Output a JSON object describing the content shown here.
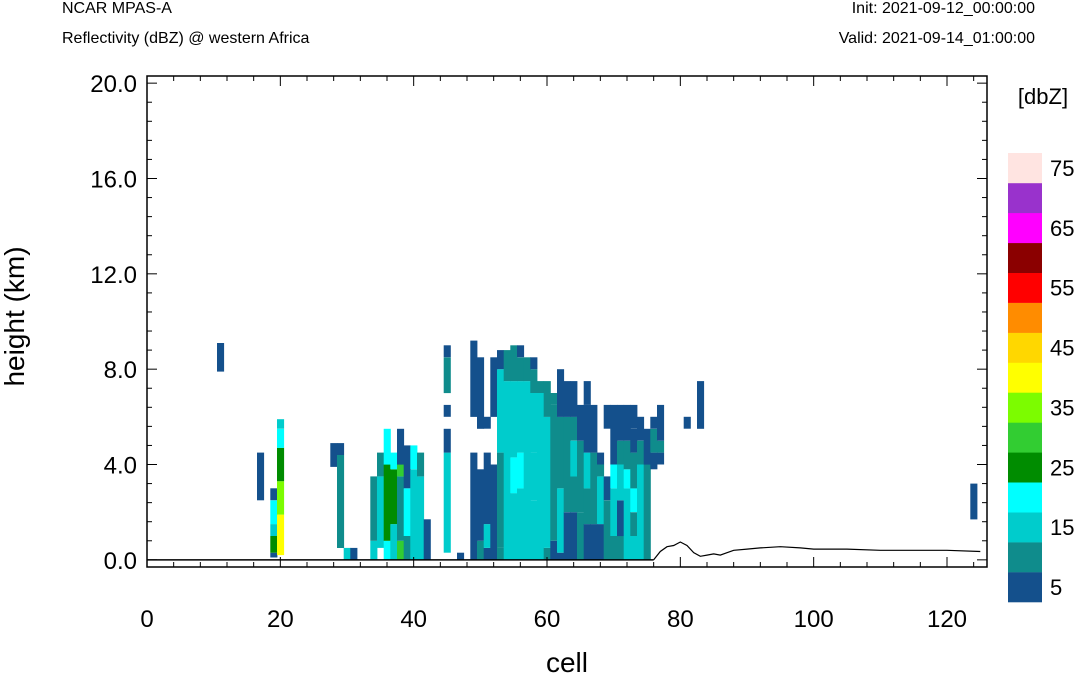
{
  "header": {
    "model": "NCAR MPAS-A",
    "field": "Reflectivity (dBZ) @ western Africa",
    "init": "Init: 2021-09-12_00:00:00",
    "valid": "Valid: 2021-09-14_01:00:00"
  },
  "chart_data": {
    "type": "heatmap",
    "xlabel": "cell",
    "ylabel": "height (km)",
    "xlim": [
      0,
      126
    ],
    "ylim": [
      -0.3,
      20.3
    ],
    "xticks": [
      0,
      20,
      40,
      60,
      80,
      100,
      120
    ],
    "xtick_labels": [
      "0",
      "20",
      "40",
      "60",
      "80",
      "100",
      "120"
    ],
    "yticks": [
      0,
      4,
      8,
      12,
      16,
      20
    ],
    "ytick_labels": [
      "0.0",
      "4.0",
      "8.0",
      "12.0",
      "16.0",
      "20.0"
    ],
    "colorbar": {
      "unit_label": "[dbZ]",
      "bounds": [
        0,
        10,
        15,
        20,
        25,
        30,
        35,
        40,
        45,
        50,
        55,
        60,
        65,
        70,
        80
      ],
      "colors": [
        "#14508c",
        "#0f8c8c",
        "#00cccc",
        "#00ffff",
        "#008c00",
        "#32cd32",
        "#7cfc00",
        "#ffff00",
        "#ffd700",
        "#ff8c00",
        "#ff0000",
        "#8b0000",
        "#ff00ff",
        "#9932cc",
        "#ffe4e1"
      ],
      "tick_labels": [
        "5",
        "15",
        "25",
        "35",
        "45",
        "55",
        "65",
        "75"
      ]
    },
    "terrain_km": [
      [
        76,
        0.0
      ],
      [
        77,
        0.35
      ],
      [
        78,
        0.55
      ],
      [
        79,
        0.6
      ],
      [
        80,
        0.75
      ],
      [
        81,
        0.6
      ],
      [
        82,
        0.3
      ],
      [
        83,
        0.15
      ],
      [
        84,
        0.2
      ],
      [
        85,
        0.25
      ],
      [
        86,
        0.2
      ],
      [
        87,
        0.3
      ],
      [
        88,
        0.4
      ],
      [
        90,
        0.45
      ],
      [
        92,
        0.5
      ],
      [
        95,
        0.55
      ],
      [
        98,
        0.5
      ],
      [
        100,
        0.45
      ],
      [
        105,
        0.45
      ],
      [
        110,
        0.4
      ],
      [
        115,
        0.4
      ],
      [
        120,
        0.4
      ],
      [
        125,
        0.35
      ]
    ],
    "columns": [
      {
        "x": 11,
        "cells": [
          [
            7.9,
            9.1,
            5
          ]
        ]
      },
      {
        "x": 17,
        "cells": [
          [
            2.5,
            4.5,
            5
          ]
        ]
      },
      {
        "x": 19,
        "cells": [
          [
            0.1,
            0.3,
            5
          ],
          [
            0.3,
            1.0,
            25
          ],
          [
            1.0,
            1.5,
            15
          ],
          [
            1.5,
            2.5,
            20
          ],
          [
            2.5,
            3.0,
            5
          ]
        ]
      },
      {
        "x": 20,
        "cells": [
          [
            0.2,
            1.9,
            40
          ],
          [
            1.9,
            3.3,
            35
          ],
          [
            3.3,
            4.7,
            25
          ],
          [
            4.7,
            5.5,
            20
          ],
          [
            5.5,
            5.9,
            15
          ]
        ]
      },
      {
        "x": 28,
        "cells": [
          [
            3.9,
            4.9,
            5
          ]
        ]
      },
      {
        "x": 29,
        "cells": [
          [
            4.4,
            4.9,
            5
          ],
          [
            0.5,
            4.4,
            10
          ]
        ]
      },
      {
        "x": 30,
        "cells": [
          [
            0.0,
            0.5,
            15
          ]
        ]
      },
      {
        "x": 31,
        "cells": [
          [
            0.0,
            0.5,
            5
          ]
        ]
      },
      {
        "x": 34,
        "cells": [
          [
            0.0,
            0.8,
            15
          ],
          [
            0.8,
            3.5,
            10
          ]
        ]
      },
      {
        "x": 35,
        "cells": [
          [
            0.5,
            3.5,
            15
          ],
          [
            3.5,
            4.5,
            10
          ]
        ]
      },
      {
        "x": 36,
        "cells": [
          [
            0.0,
            0.8,
            20
          ],
          [
            0.8,
            4.0,
            25
          ],
          [
            4.0,
            5.5,
            20
          ]
        ]
      },
      {
        "x": 37,
        "cells": [
          [
            0.0,
            1.5,
            15
          ],
          [
            1.5,
            3.8,
            25
          ],
          [
            3.8,
            4.5,
            20
          ]
        ]
      },
      {
        "x": 38,
        "cells": [
          [
            0.0,
            0.8,
            30
          ],
          [
            0.8,
            3.5,
            10
          ],
          [
            3.5,
            4.0,
            30
          ],
          [
            4.0,
            5.5,
            5
          ]
        ]
      },
      {
        "x": 39,
        "cells": [
          [
            0.0,
            1.0,
            10
          ],
          [
            1.0,
            3.0,
            20
          ],
          [
            3.0,
            4.8,
            5
          ]
        ]
      },
      {
        "x": 40,
        "cells": [
          [
            0.0,
            3.8,
            15
          ],
          [
            3.8,
            4.8,
            20
          ]
        ]
      },
      {
        "x": 41,
        "cells": [
          [
            0.0,
            3.5,
            15
          ],
          [
            3.5,
            4.5,
            10
          ]
        ]
      },
      {
        "x": 42,
        "cells": [
          [
            0.0,
            1.7,
            5
          ]
        ]
      },
      {
        "x": 45,
        "cells": [
          [
            0.3,
            4.5,
            15
          ],
          [
            4.5,
            5.5,
            5
          ],
          [
            6.0,
            6.5,
            5
          ],
          [
            7.0,
            8.5,
            10
          ],
          [
            8.5,
            9.0,
            5
          ]
        ]
      },
      {
        "x": 47,
        "cells": [
          [
            0.0,
            0.3,
            5
          ]
        ]
      },
      {
        "x": 49,
        "cells": [
          [
            0.0,
            4.5,
            5
          ],
          [
            6.0,
            9.2,
            5
          ]
        ]
      },
      {
        "x": 50,
        "cells": [
          [
            0.0,
            0.8,
            10
          ],
          [
            0.8,
            3.8,
            5
          ],
          [
            5.5,
            8.5,
            5
          ]
        ]
      },
      {
        "x": 51,
        "cells": [
          [
            0.0,
            0.5,
            5
          ],
          [
            0.5,
            1.5,
            15
          ],
          [
            1.5,
            4.5,
            5
          ],
          [
            5.5,
            6.0,
            5
          ]
        ]
      },
      {
        "x": 52,
        "cells": [
          [
            0.0,
            4.0,
            5
          ],
          [
            6.0,
            8.5,
            5
          ]
        ]
      },
      {
        "x": 53,
        "cells": [
          [
            0.0,
            0.5,
            10
          ],
          [
            0.5,
            4.5,
            10
          ],
          [
            4.5,
            8.0,
            15
          ],
          [
            8.0,
            8.8,
            5
          ]
        ]
      },
      {
        "x": 54,
        "cells": [
          [
            0.0,
            7.5,
            15
          ],
          [
            7.5,
            8.8,
            10
          ]
        ]
      },
      {
        "x": 55,
        "cells": [
          [
            0.0,
            2.8,
            15
          ],
          [
            2.8,
            4.3,
            20
          ],
          [
            4.3,
            7.5,
            15
          ],
          [
            7.5,
            9.0,
            10
          ]
        ]
      },
      {
        "x": 56,
        "cells": [
          [
            0.0,
            3.0,
            15
          ],
          [
            3.0,
            4.5,
            20
          ],
          [
            4.5,
            7.5,
            15
          ],
          [
            7.5,
            8.5,
            10
          ],
          [
            8.5,
            9.0,
            5
          ]
        ]
      },
      {
        "x": 57,
        "cells": [
          [
            0.0,
            7.5,
            15
          ],
          [
            7.5,
            8.5,
            10
          ]
        ]
      },
      {
        "x": 58,
        "cells": [
          [
            0.0,
            2.5,
            15
          ],
          [
            2.5,
            4.5,
            15
          ],
          [
            4.5,
            7.0,
            15
          ],
          [
            7.0,
            8.0,
            10
          ],
          [
            8.0,
            8.5,
            5
          ]
        ]
      },
      {
        "x": 59,
        "cells": [
          [
            0.0,
            7.0,
            15
          ],
          [
            7.0,
            7.5,
            10
          ]
        ]
      },
      {
        "x": 60,
        "cells": [
          [
            0.0,
            0.5,
            10
          ],
          [
            0.5,
            6.0,
            15
          ],
          [
            6.0,
            7.5,
            10
          ]
        ]
      },
      {
        "x": 61,
        "cells": [
          [
            0.0,
            0.8,
            5
          ],
          [
            0.8,
            6.5,
            10
          ],
          [
            6.5,
            7.0,
            10
          ]
        ]
      },
      {
        "x": 62,
        "cells": [
          [
            0.0,
            0.3,
            5
          ],
          [
            0.3,
            3.0,
            15
          ],
          [
            3.0,
            6.0,
            10
          ],
          [
            6.0,
            8.0,
            5
          ]
        ]
      },
      {
        "x": 63,
        "cells": [
          [
            0.0,
            2.0,
            5
          ],
          [
            2.0,
            6.0,
            10
          ],
          [
            6.0,
            7.5,
            5
          ]
        ]
      },
      {
        "x": 64,
        "cells": [
          [
            0.0,
            2.0,
            5
          ],
          [
            2.0,
            3.5,
            10
          ],
          [
            3.5,
            5.0,
            15
          ],
          [
            5.0,
            6.0,
            10
          ],
          [
            6.0,
            7.5,
            5
          ]
        ]
      },
      {
        "x": 65,
        "cells": [
          [
            0.0,
            2.0,
            10
          ],
          [
            2.0,
            5.0,
            10
          ],
          [
            5.0,
            6.5,
            5
          ]
        ]
      },
      {
        "x": 66,
        "cells": [
          [
            0.0,
            1.5,
            5
          ],
          [
            1.5,
            3.0,
            10
          ],
          [
            3.0,
            4.5,
            15
          ],
          [
            4.5,
            6.5,
            5
          ],
          [
            6.5,
            7.5,
            5
          ]
        ]
      },
      {
        "x": 67,
        "cells": [
          [
            0.0,
            1.5,
            5
          ],
          [
            1.5,
            4.5,
            10
          ],
          [
            4.5,
            6.5,
            5
          ]
        ]
      },
      {
        "x": 68,
        "cells": [
          [
            0.0,
            1.5,
            5
          ],
          [
            1.5,
            3.5,
            15
          ],
          [
            3.5,
            4.0,
            10
          ],
          [
            4.0,
            4.5,
            5
          ]
        ]
      },
      {
        "x": 69,
        "cells": [
          [
            0.0,
            2.5,
            10
          ],
          [
            2.5,
            3.5,
            5
          ],
          [
            5.5,
            6.5,
            5
          ]
        ]
      },
      {
        "x": 70,
        "cells": [
          [
            0.0,
            1.0,
            10
          ],
          [
            1.0,
            3.0,
            15
          ],
          [
            3.0,
            4.0,
            20
          ],
          [
            4.0,
            6.5,
            5
          ]
        ]
      },
      {
        "x": 71,
        "cells": [
          [
            0.0,
            1.0,
            10
          ],
          [
            1.0,
            2.5,
            5
          ],
          [
            2.5,
            4.0,
            15
          ],
          [
            4.0,
            5.0,
            10
          ],
          [
            5.0,
            6.5,
            5
          ]
        ]
      },
      {
        "x": 72,
        "cells": [
          [
            0.0,
            3.0,
            15
          ],
          [
            3.0,
            3.8,
            20
          ],
          [
            3.8,
            5.0,
            10
          ],
          [
            5.0,
            6.5,
            5
          ]
        ]
      },
      {
        "x": 73,
        "cells": [
          [
            0.0,
            1.0,
            15
          ],
          [
            1.0,
            2.0,
            10
          ],
          [
            2.0,
            3.0,
            20
          ],
          [
            3.0,
            4.5,
            10
          ],
          [
            4.5,
            5.5,
            5
          ],
          [
            5.5,
            6.5,
            5
          ]
        ]
      },
      {
        "x": 74,
        "cells": [
          [
            0.0,
            4.0,
            15
          ],
          [
            4.0,
            5.0,
            10
          ],
          [
            5.0,
            6.0,
            5
          ]
        ]
      },
      {
        "x": 75,
        "cells": [
          [
            0.0,
            4.0,
            10
          ],
          [
            4.0,
            5.5,
            5
          ]
        ]
      },
      {
        "x": 76,
        "cells": [
          [
            3.8,
            4.5,
            5
          ],
          [
            4.5,
            5.5,
            10
          ],
          [
            5.5,
            6.0,
            5
          ]
        ]
      },
      {
        "x": 77,
        "cells": [
          [
            4.0,
            4.5,
            5
          ],
          [
            4.5,
            5.0,
            10
          ],
          [
            5.0,
            6.5,
            5
          ]
        ]
      },
      {
        "x": 81,
        "cells": [
          [
            5.5,
            6.0,
            5
          ]
        ]
      },
      {
        "x": 83,
        "cells": [
          [
            5.5,
            7.5,
            5
          ]
        ]
      },
      {
        "x": 124,
        "cells": [
          [
            1.7,
            3.2,
            5
          ]
        ]
      }
    ]
  }
}
